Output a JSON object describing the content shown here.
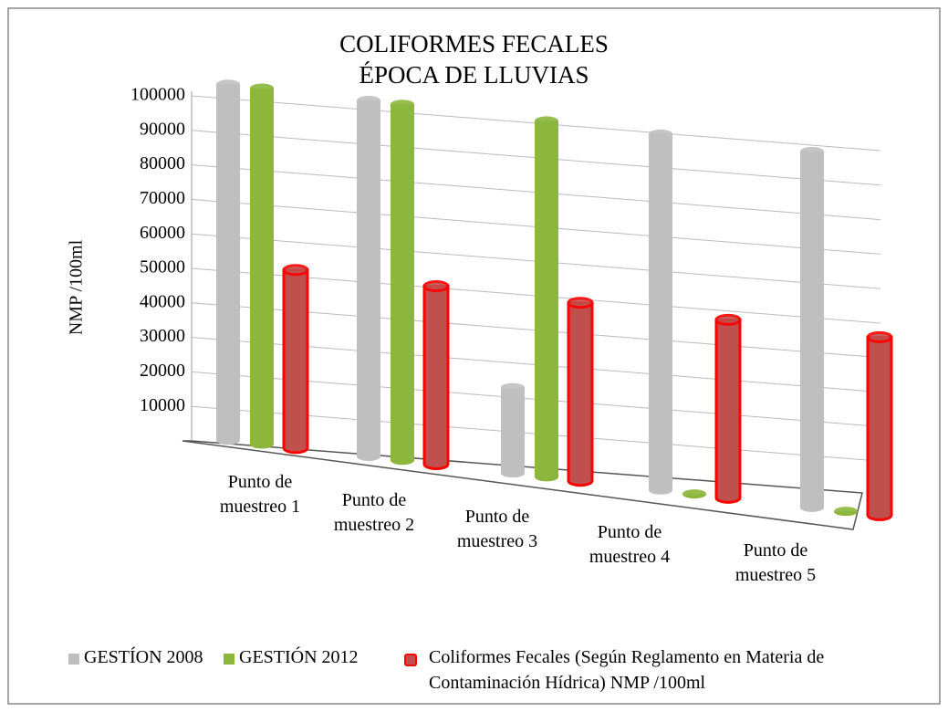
{
  "chart_data": {
    "type": "bar3d",
    "title": [
      "COLIFORMES FECALES",
      "ÉPOCA DE LLUVIAS"
    ],
    "y_label": "NMP /100ml",
    "categories": [
      "Punto de muestreo 1",
      "Punto de muestreo 2",
      "Punto de muestreo 3",
      "Punto de muestreo 4",
      "Punto de muestreo 5"
    ],
    "series": [
      {
        "name": "GESTÍON 2008",
        "color": "#bfbfbf",
        "values": [
          100000,
          100000,
          24000,
          100000,
          100000
        ]
      },
      {
        "name": "GESTIÓN 2012",
        "color": "#8db63c",
        "values": [
          100000,
          100000,
          100000,
          0,
          0
        ]
      },
      {
        "name": "Coliformes Fecales  (Según Reglamento en Materia de Contaminación Hídrica) NMP /100ml",
        "color": "#c0504d",
        "border_color": "#ff0000",
        "values": [
          50000,
          50000,
          50000,
          50000,
          50000
        ]
      }
    ],
    "ylim": [
      0,
      100000
    ],
    "yticks": [
      10000,
      20000,
      30000,
      40000,
      50000,
      60000,
      70000,
      80000,
      90000,
      100000
    ],
    "grid": true,
    "legend": "bottom"
  }
}
